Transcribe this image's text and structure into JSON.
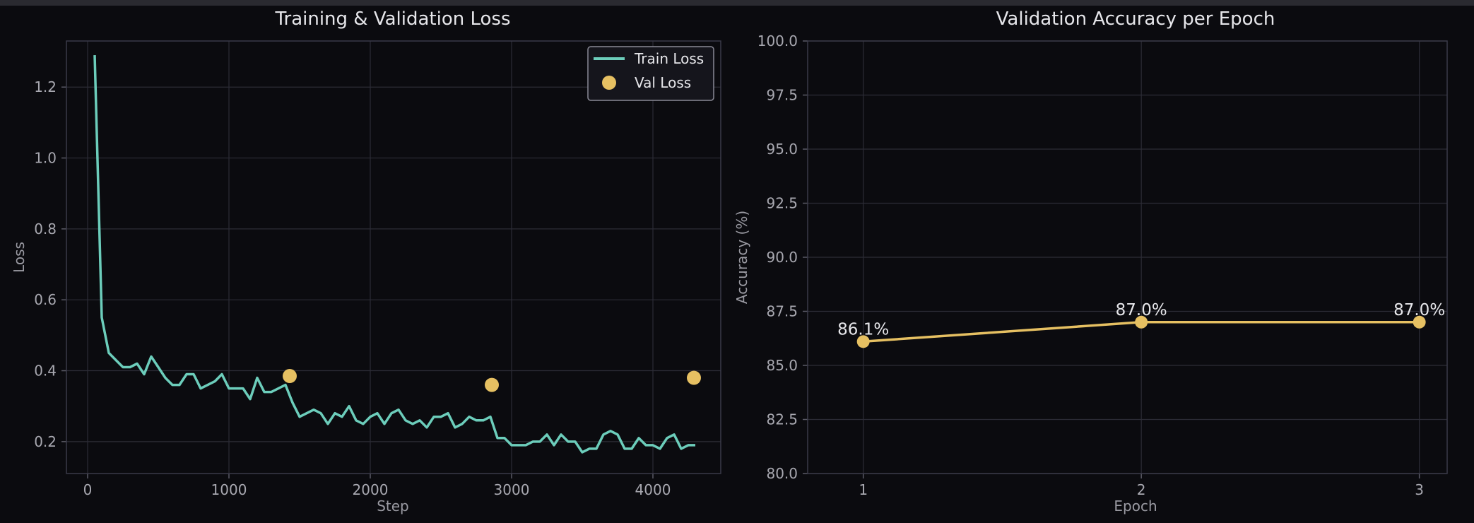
{
  "colors": {
    "background": "#0b0b0f",
    "train_loss": "#6ccdbb",
    "val_loss": "#e6c062",
    "accuracy": "#e6c062"
  },
  "chart_data": [
    {
      "type": "line",
      "title": "Training & Validation Loss",
      "xlabel": "Step",
      "ylabel": "Loss",
      "xlim": [
        -150,
        4480
      ],
      "ylim": [
        0.11,
        1.33
      ],
      "xticks": [
        0,
        1000,
        2000,
        3000,
        4000
      ],
      "yticks": [
        0.2,
        0.4,
        0.6,
        0.8,
        1.0,
        1.2
      ],
      "xtick_labels": [
        "0",
        "1000",
        "2000",
        "3000",
        "4000"
      ],
      "ytick_labels": [
        "0.2",
        "0.4",
        "0.6",
        "0.8",
        "1.0",
        "1.2"
      ],
      "grid": true,
      "legend_position": "top-right",
      "series": [
        {
          "name": "Train Loss",
          "kind": "line",
          "x": [
            50,
            100,
            150,
            200,
            250,
            300,
            350,
            400,
            450,
            500,
            550,
            600,
            650,
            700,
            750,
            800,
            850,
            900,
            950,
            1000,
            1050,
            1100,
            1150,
            1200,
            1250,
            1300,
            1350,
            1400,
            1450,
            1500,
            1550,
            1600,
            1650,
            1700,
            1750,
            1800,
            1850,
            1900,
            1950,
            2000,
            2050,
            2100,
            2150,
            2200,
            2250,
            2300,
            2350,
            2400,
            2450,
            2500,
            2550,
            2600,
            2650,
            2700,
            2750,
            2800,
            2850,
            2900,
            2950,
            3000,
            3050,
            3100,
            3150,
            3200,
            3250,
            3300,
            3350,
            3400,
            3450,
            3500,
            3550,
            3600,
            3650,
            3700,
            3750,
            3800,
            3850,
            3900,
            3950,
            4000,
            4050,
            4100,
            4150,
            4200,
            4250,
            4300
          ],
          "y": [
            1.29,
            0.55,
            0.45,
            0.43,
            0.41,
            0.41,
            0.42,
            0.39,
            0.44,
            0.41,
            0.38,
            0.36,
            0.36,
            0.39,
            0.39,
            0.35,
            0.36,
            0.37,
            0.39,
            0.35,
            0.35,
            0.35,
            0.32,
            0.38,
            0.34,
            0.34,
            0.35,
            0.36,
            0.31,
            0.27,
            0.28,
            0.29,
            0.28,
            0.25,
            0.28,
            0.27,
            0.3,
            0.26,
            0.25,
            0.27,
            0.28,
            0.25,
            0.28,
            0.29,
            0.26,
            0.25,
            0.26,
            0.24,
            0.27,
            0.27,
            0.28,
            0.24,
            0.25,
            0.27,
            0.26,
            0.26,
            0.27,
            0.21,
            0.21,
            0.19,
            0.19,
            0.19,
            0.2,
            0.2,
            0.22,
            0.19,
            0.22,
            0.2,
            0.2,
            0.17,
            0.18,
            0.18,
            0.22,
            0.23,
            0.22,
            0.18,
            0.18,
            0.21,
            0.19,
            0.19,
            0.18,
            0.21,
            0.22,
            0.18,
            0.19,
            0.19
          ]
        },
        {
          "name": "Val Loss",
          "kind": "scatter",
          "x": [
            1430,
            2860,
            4290
          ],
          "y": [
            0.385,
            0.36,
            0.38
          ]
        }
      ]
    },
    {
      "type": "line",
      "title": "Validation Accuracy per Epoch",
      "xlabel": "Epoch",
      "ylabel": "Accuracy (%)",
      "xlim": [
        0.8,
        3.1
      ],
      "ylim": [
        80.0,
        100.0
      ],
      "xticks": [
        1,
        2,
        3
      ],
      "yticks": [
        80.0,
        82.5,
        85.0,
        87.5,
        90.0,
        92.5,
        95.0,
        97.5,
        100.0
      ],
      "xtick_labels": [
        "1",
        "2",
        "3"
      ],
      "ytick_labels": [
        "80.0",
        "82.5",
        "85.0",
        "87.5",
        "90.0",
        "92.5",
        "95.0",
        "97.5",
        "100.0"
      ],
      "grid": true,
      "series": [
        {
          "x": [
            1,
            2,
            3
          ],
          "y": [
            86.1,
            87.0,
            87.0
          ],
          "point_labels": [
            "86.1%",
            "87.0%",
            "87.0%"
          ]
        }
      ]
    }
  ]
}
